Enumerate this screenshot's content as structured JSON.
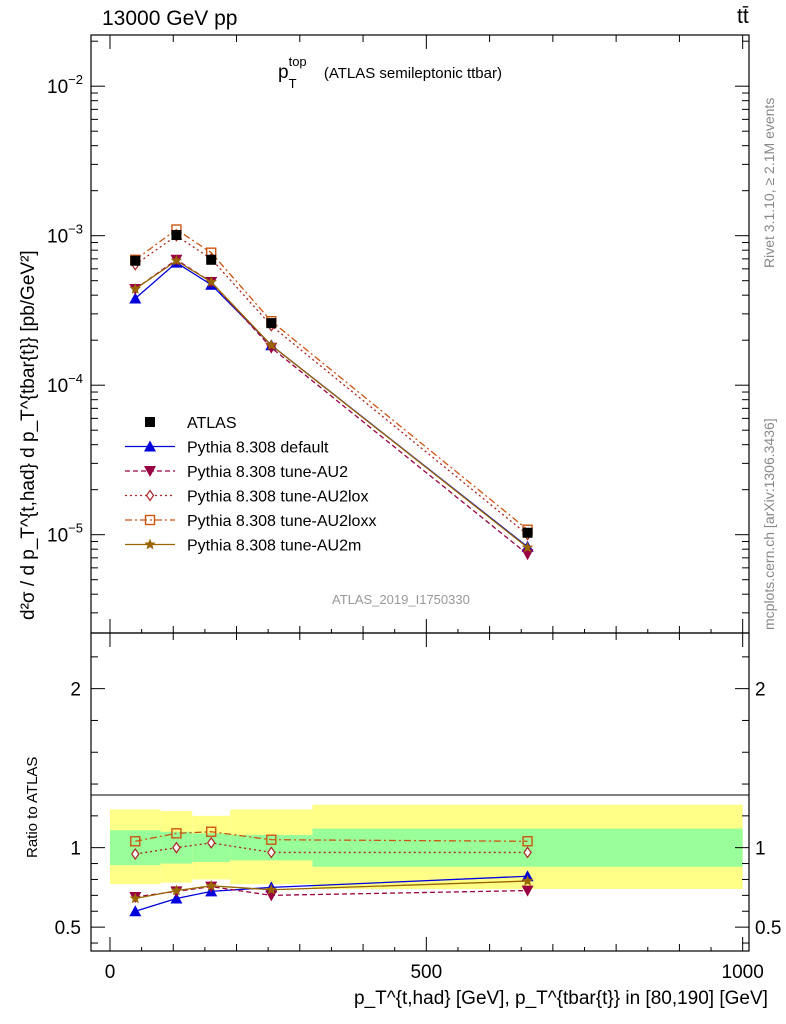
{
  "header": {
    "process": "13000 GeV pp",
    "final_state": "tt̄"
  },
  "main_panel": {
    "title_base": "p",
    "title_sup": "top",
    "title_sub": "T",
    "title_rest": "(ATLAS semileptonic ttbar)",
    "ylabel": "d²σ / d p_T^{t,had} d p_T^{tbar{t}} [pb/GeV²]",
    "analysis_tag": "ATLAS_2019_I1750330",
    "yticks": [
      {
        "mant": "10",
        "exp": "−2",
        "value": 0.01
      },
      {
        "mant": "10",
        "exp": "−3",
        "value": 0.001
      },
      {
        "mant": "10",
        "exp": "−4",
        "value": 0.0001
      },
      {
        "mant": "10",
        "exp": "−5",
        "value": 1e-05
      }
    ]
  },
  "ratio_panel": {
    "ylabel": "Ratio to ATLAS",
    "yticks": [
      "0.5",
      "1",
      "2"
    ]
  },
  "xaxis": {
    "label": "p_T^{t,had} [GeV], p_T^{tbar{t}} in [80,190] [GeV]",
    "ticks": [
      "0",
      "500",
      "1000"
    ]
  },
  "side_labels": {
    "rivet": "Rivet 3.1.10, ≥ 2.1M events",
    "mcplots": "mcplots.cern.ch [arXiv:1306.3436]"
  },
  "chart_data": {
    "type": "line",
    "x": [
      40,
      105,
      160,
      255,
      660
    ],
    "x_edges": [
      0,
      80,
      130,
      190,
      320,
      1000
    ],
    "xlim": [
      -30,
      1010
    ],
    "ylim_main": [
      2.2e-06,
      0.022
    ],
    "log_y": true,
    "ylim_ratio": [
      0.35,
      2.35
    ],
    "legend_position": "lower-left",
    "data": {
      "name": "ATLAS",
      "values": [
        0.00068,
        0.00101,
        0.00069,
        0.00026,
        1.03e-05
      ],
      "band_inner": [
        [
          0.89,
          1.11
        ],
        [
          0.9,
          1.1
        ],
        [
          0.91,
          1.09
        ],
        [
          0.92,
          1.08
        ],
        [
          0.88,
          1.12
        ]
      ],
      "band_outer": [
        [
          0.77,
          1.24
        ],
        [
          0.78,
          1.23
        ],
        [
          0.8,
          1.2
        ],
        [
          0.77,
          1.24
        ],
        [
          0.74,
          1.27
        ]
      ],
      "inner_color": "#99ff99",
      "outer_color": "#ffff88"
    },
    "series": [
      {
        "name": "Pythia 8.308 default",
        "color": "#0000dd",
        "marker": "triangle-up",
        "dash": "",
        "values": [
          0.00038,
          0.00066,
          0.00047,
          0.000185,
          8.3e-06
        ],
        "ratio": [
          0.6,
          0.68,
          0.725,
          0.75,
          0.82
        ]
      },
      {
        "name": "Pythia 8.308 tune-AU2",
        "color": "#990044",
        "marker": "triangle-down",
        "dash": "5,3",
        "values": [
          0.00044,
          0.00069,
          0.00049,
          0.000178,
          7.4e-06
        ],
        "ratio": [
          0.69,
          0.725,
          0.755,
          0.7,
          0.73
        ]
      },
      {
        "name": "Pythia 8.308 tune-AU2lox",
        "color": "#aa2222",
        "marker": "diamond-open",
        "dash": "2,3",
        "values": [
          0.00064,
          0.001,
          0.0007,
          0.00025,
          1e-05
        ],
        "ratio": [
          0.96,
          1.0,
          1.03,
          0.97,
          0.97
        ]
      },
      {
        "name": "Pythia 8.308 tune-AU2loxx",
        "color": "#cc5511",
        "marker": "square-open",
        "dash": "7,3,2,3",
        "values": [
          0.00069,
          0.0011,
          0.00077,
          0.000268,
          1.08e-05
        ],
        "ratio": [
          1.04,
          1.09,
          1.1,
          1.05,
          1.04
        ]
      },
      {
        "name": "Pythia 8.308 tune-AU2m",
        "color": "#996600",
        "marker": "star",
        "dash": "",
        "values": [
          0.00044,
          0.00068,
          0.00049,
          0.000185,
          8.2e-06
        ],
        "ratio": [
          0.68,
          0.73,
          0.76,
          0.735,
          0.79
        ]
      }
    ]
  }
}
